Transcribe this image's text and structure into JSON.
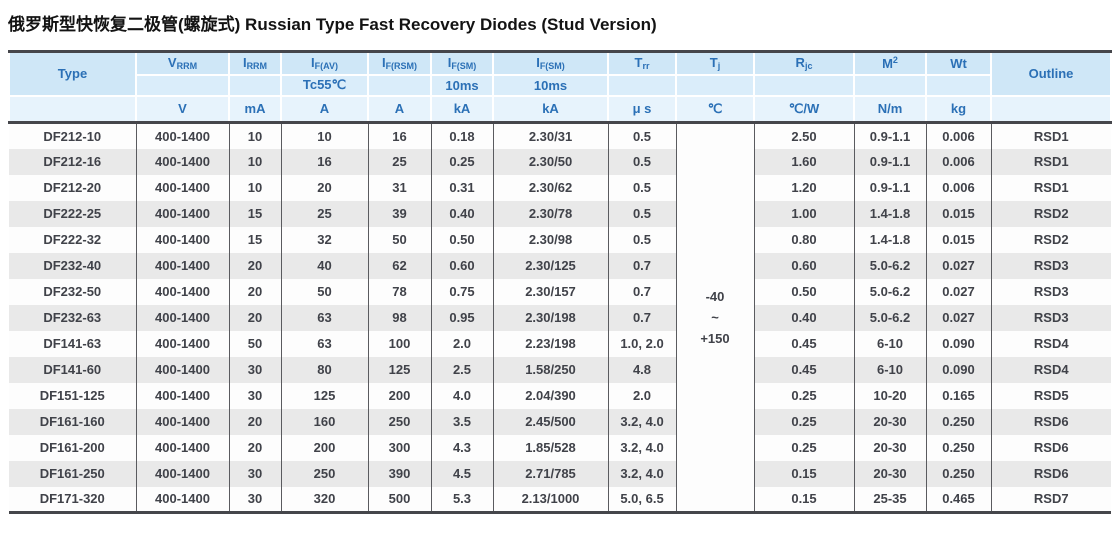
{
  "page": {
    "title": "俄罗斯型快恢复二极管(螺旋式) Russian Type Fast Recovery Diodes (Stud Version)"
  },
  "colors": {
    "header_bg_row1": "#cfe7f7",
    "header_bg_row2": "#daedfa",
    "header_bg_units": "#e7f3fc",
    "header_text": "#2b70b6",
    "body_text": "#404249",
    "stripe_gray": "#e9e9e9",
    "rule_dark": "#45464b"
  },
  "table": {
    "header": {
      "type_label": "Type",
      "outline_label": "Outline",
      "cols": [
        {
          "main": "V",
          "sub": "RRM",
          "row2": "",
          "unit": "V"
        },
        {
          "main": "I",
          "sub": "RRM",
          "row2": "",
          "unit": "mA"
        },
        {
          "main": "I",
          "sub": "F(AV)",
          "row2": "Tc55℃",
          "unit": "A"
        },
        {
          "main": "I",
          "sub": "F(RSM)",
          "row2": "",
          "unit": "A"
        },
        {
          "main": "I",
          "sub": "F(SM)",
          "row2": "10ms",
          "unit": "kA"
        },
        {
          "main": "I",
          "sub": "F(SM)",
          "row2": "10ms",
          "unit": "kA"
        },
        {
          "main": "T",
          "sub": "rr",
          "row2": "",
          "unit": "μ s"
        },
        {
          "main": "T",
          "sub": "j",
          "row2": "",
          "unit": "℃"
        },
        {
          "main": "R",
          "sub": "jc",
          "row2": "",
          "unit": "℃/W"
        },
        {
          "main": "M",
          "sup": "2",
          "row2": "",
          "unit": "N/m"
        },
        {
          "main": "Wt",
          "row2": "",
          "unit": "kg"
        }
      ]
    },
    "tj_merged": [
      "-40",
      "~",
      "+150"
    ],
    "rows": [
      [
        "DF212-10",
        "400-1400",
        "10",
        "10",
        "16",
        "0.18",
        "2.30/31",
        "0.5",
        "2.50",
        "0.9-1.1",
        "0.006",
        "RSD1"
      ],
      [
        "DF212-16",
        "400-1400",
        "10",
        "16",
        "25",
        "0.25",
        "2.30/50",
        "0.5",
        "1.60",
        "0.9-1.1",
        "0.006",
        "RSD1"
      ],
      [
        "DF212-20",
        "400-1400",
        "10",
        "20",
        "31",
        "0.31",
        "2.30/62",
        "0.5",
        "1.20",
        "0.9-1.1",
        "0.006",
        "RSD1"
      ],
      [
        "DF222-25",
        "400-1400",
        "15",
        "25",
        "39",
        "0.40",
        "2.30/78",
        "0.5",
        "1.00",
        "1.4-1.8",
        "0.015",
        "RSD2"
      ],
      [
        "DF222-32",
        "400-1400",
        "15",
        "32",
        "50",
        "0.50",
        "2.30/98",
        "0.5",
        "0.80",
        "1.4-1.8",
        "0.015",
        "RSD2"
      ],
      [
        "DF232-40",
        "400-1400",
        "20",
        "40",
        "62",
        "0.60",
        "2.30/125",
        "0.7",
        "0.60",
        "5.0-6.2",
        "0.027",
        "RSD3"
      ],
      [
        "DF232-50",
        "400-1400",
        "20",
        "50",
        "78",
        "0.75",
        "2.30/157",
        "0.7",
        "0.50",
        "5.0-6.2",
        "0.027",
        "RSD3"
      ],
      [
        "DF232-63",
        "400-1400",
        "20",
        "63",
        "98",
        "0.95",
        "2.30/198",
        "0.7",
        "0.40",
        "5.0-6.2",
        "0.027",
        "RSD3"
      ],
      [
        "DF141-63",
        "400-1400",
        "50",
        "63",
        "100",
        "2.0",
        "2.23/198",
        "1.0, 2.0",
        "0.45",
        "6-10",
        "0.090",
        "RSD4"
      ],
      [
        "DF141-60",
        "400-1400",
        "30",
        "80",
        "125",
        "2.5",
        "1.58/250",
        "4.8",
        "0.45",
        "6-10",
        "0.090",
        "RSD4"
      ],
      [
        "DF151-125",
        "400-1400",
        "30",
        "125",
        "200",
        "4.0",
        "2.04/390",
        "2.0",
        "0.25",
        "10-20",
        "0.165",
        "RSD5"
      ],
      [
        "DF161-160",
        "400-1400",
        "20",
        "160",
        "250",
        "3.5",
        "2.45/500",
        "3.2, 4.0",
        "0.25",
        "20-30",
        "0.250",
        "RSD6"
      ],
      [
        "DF161-200",
        "400-1400",
        "20",
        "200",
        "300",
        "4.3",
        "1.85/528",
        "3.2, 4.0",
        "0.25",
        "20-30",
        "0.250",
        "RSD6"
      ],
      [
        "DF161-250",
        "400-1400",
        "30",
        "250",
        "390",
        "4.5",
        "2.71/785",
        "3.2, 4.0",
        "0.15",
        "20-30",
        "0.250",
        "RSD6"
      ],
      [
        "DF171-320",
        "400-1400",
        "30",
        "320",
        "500",
        "5.3",
        "2.13/1000",
        "5.0, 6.5",
        "0.15",
        "25-35",
        "0.465",
        "RSD7"
      ]
    ]
  }
}
